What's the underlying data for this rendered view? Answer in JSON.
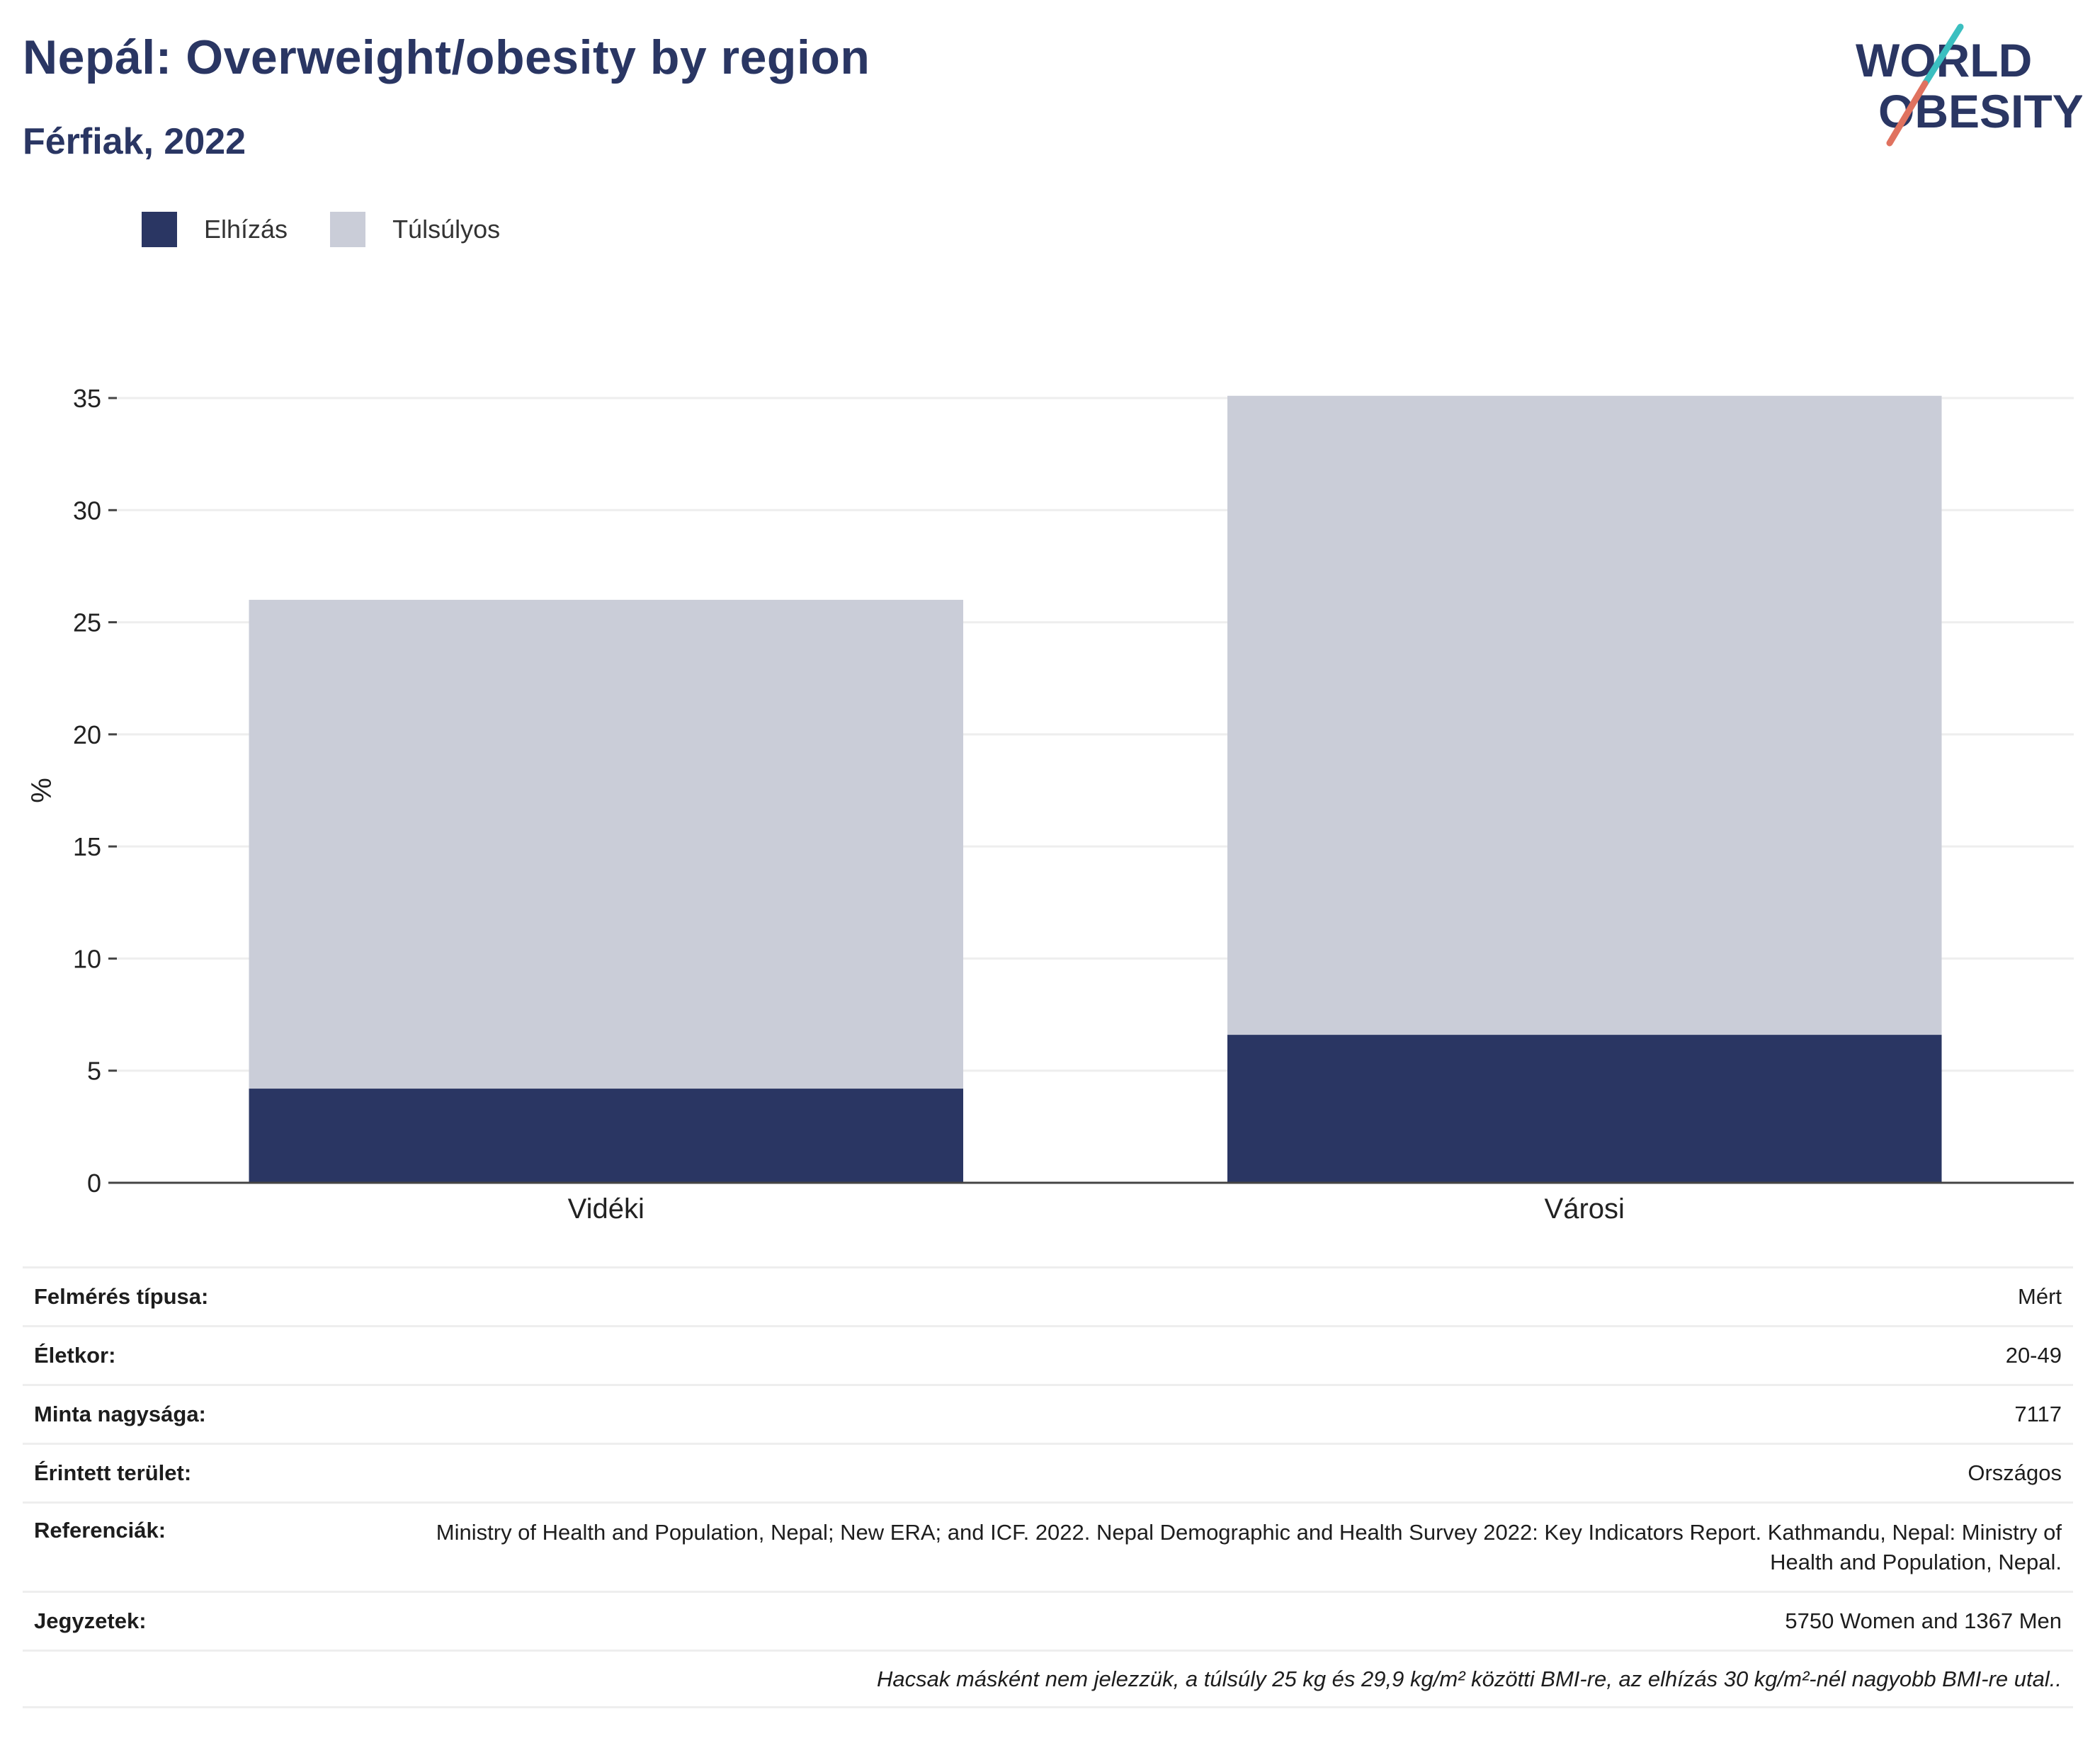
{
  "header": {
    "title": "Nepál: Overweight/obesity by region",
    "subtitle": "Férfiak, 2022"
  },
  "logo": {
    "line1": "WORLD",
    "line2": "OBESITY",
    "name": "world-obesity-logo"
  },
  "colors": {
    "obesity": "#2a3663",
    "overweight": "#cacdd8",
    "text": "#2a3663",
    "grid": "#eeeeee",
    "logo_teal": "#3bbfc0",
    "logo_coral": "#e0725f"
  },
  "legend": {
    "items": [
      {
        "label": "Elhízás",
        "color": "#2a3663"
      },
      {
        "label": "Túlsúlyos",
        "color": "#cacdd8"
      }
    ],
    "position": "top-left"
  },
  "chart_data": {
    "type": "bar",
    "stacked": true,
    "categories": [
      "Vidéki",
      "Városi"
    ],
    "series": [
      {
        "name": "Elhízás",
        "values": [
          4.2,
          6.6
        ]
      },
      {
        "name": "Túlsúlyos",
        "values": [
          21.8,
          28.5
        ]
      }
    ],
    "ylabel": "%",
    "ylim": [
      0,
      35
    ],
    "yticks": [
      0,
      5,
      10,
      15,
      20,
      25,
      30,
      35
    ],
    "grid": true
  },
  "meta": {
    "rows": [
      {
        "label": "Felmérés típusa:",
        "value": "Mért"
      },
      {
        "label": "Életkor:",
        "value": "20-49"
      },
      {
        "label": "Minta nagysága:",
        "value": "7117"
      },
      {
        "label": "Érintett terület:",
        "value": "Országos"
      },
      {
        "label": "Referenciák:",
        "value": "Ministry of Health and Population, Nepal; New ERA; and ICF. 2022. Nepal Demographic and Health Survey 2022: Key Indicators Report. Kathmandu, Nepal: Ministry of Health and Population, Nepal."
      },
      {
        "label": "Jegyzetek:",
        "value": "5750 Women and 1367 Men"
      }
    ],
    "footnote": "Hacsak másként nem jelezzük, a túlsúly 25 kg és 29,9 kg/m² közötti BMI-re, az elhízás 30 kg/m²-nél nagyobb BMI-re utal.."
  }
}
